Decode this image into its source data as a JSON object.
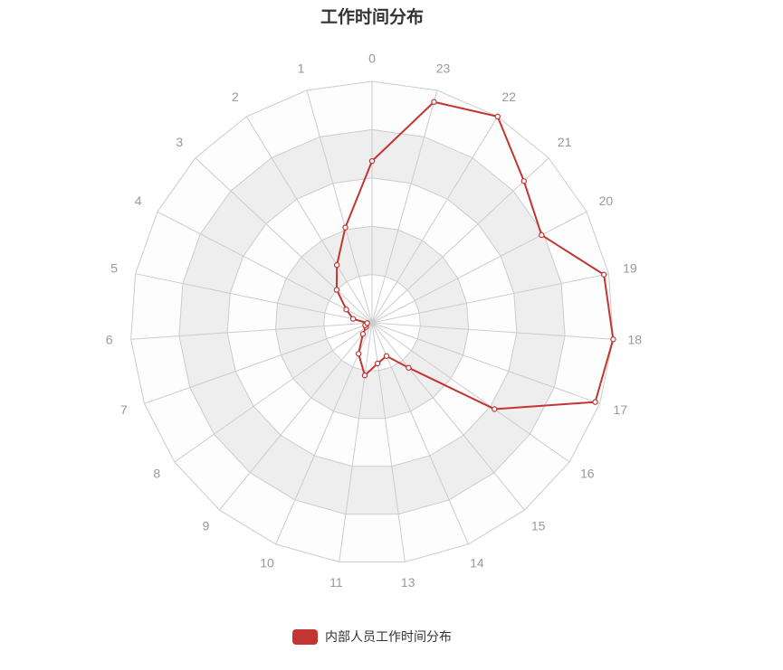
{
  "chart_data": {
    "type": "radar",
    "title": "工作时间分布",
    "categories": [
      "0",
      "23",
      "22",
      "21",
      "20",
      "19",
      "18",
      "17",
      "16",
      "15",
      "14",
      "13",
      "11",
      "10",
      "9",
      "8",
      "7",
      "6",
      "5",
      "4",
      "3",
      "2",
      "1"
    ],
    "series": [
      {
        "name": "内部人员工作时间分布",
        "color": "#c23531",
        "values": [
          0.67,
          0.95,
          1.0,
          0.86,
          0.79,
          0.98,
          1.0,
          0.98,
          0.62,
          0.24,
          0.15,
          0.17,
          0.22,
          0.14,
          0.06,
          0.03,
          0.03,
          0.02,
          0.08,
          0.12,
          0.2,
          0.28,
          0.41
        ]
      }
    ],
    "max": 1.0,
    "split_number": 5,
    "legend_position": "bottom-center"
  }
}
